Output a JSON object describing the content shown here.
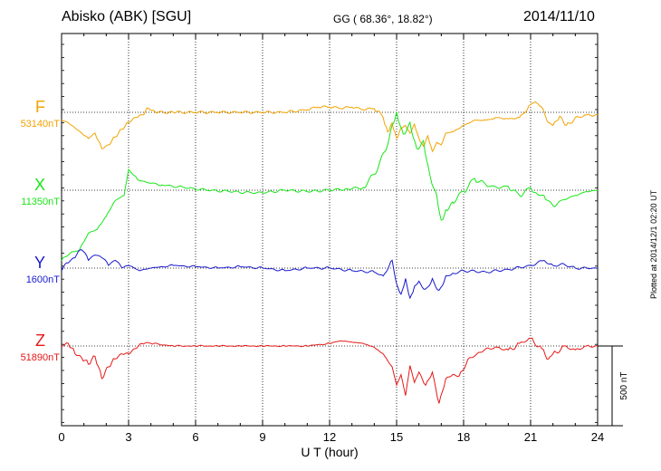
{
  "header": {
    "station": "Abisko (ABK)  [SGU]",
    "coords": "GG ( 68.36°,  18.82°)",
    "date": "2014/11/10"
  },
  "plotted_note": "Plotted at 2014/12/1 02:20 UT",
  "chart_data": {
    "type": "line",
    "xlabel": "U T (hour)",
    "xlim": [
      0,
      24
    ],
    "xticks": [
      "0",
      "3",
      "6",
      "9",
      "12",
      "15",
      "18",
      "21",
      "24"
    ],
    "grid": true,
    "scale_bar": "500 nT",
    "scale_bar_nT": 500,
    "series": [
      {
        "name": "F",
        "baseline": "53140nT",
        "color": "#f2a300",
        "x": [
          0,
          0.3,
          0.6,
          0.9,
          1.2,
          1.5,
          1.8,
          2.1,
          2.4,
          2.7,
          3.0,
          3.3,
          3.6,
          3.9,
          4.2,
          5,
          6,
          7,
          8,
          9,
          10,
          11,
          11.5,
          12,
          12.5,
          13,
          13.5,
          14,
          14.4,
          14.6,
          14.8,
          15.0,
          15.2,
          15.4,
          15.6,
          15.8,
          16.0,
          16.2,
          16.4,
          16.6,
          16.8,
          17.0,
          17.2,
          17.5,
          18,
          18.5,
          19,
          19.5,
          20,
          20.5,
          21,
          21.2,
          21.5,
          21.8,
          22,
          22.3,
          22.6,
          23,
          23.5,
          24
        ],
        "y": [
          -60,
          -80,
          -120,
          -160,
          -200,
          -160,
          -280,
          -250,
          -190,
          -130,
          -80,
          -40,
          -20,
          30,
          0,
          0,
          0,
          0,
          0,
          0,
          0,
          20,
          40,
          40,
          30,
          40,
          20,
          30,
          -40,
          -150,
          -80,
          -200,
          -120,
          -100,
          -160,
          -90,
          -200,
          -260,
          -180,
          -300,
          -230,
          -250,
          -160,
          -150,
          -100,
          -60,
          -60,
          -40,
          -50,
          -40,
          60,
          80,
          40,
          -80,
          -100,
          -30,
          -100,
          -40,
          -20,
          -20
        ]
      },
      {
        "name": "X",
        "baseline": "11350nT",
        "color": "#19e619",
        "x": [
          0,
          0.4,
          0.8,
          1.2,
          1.6,
          2.0,
          2.4,
          2.8,
          3.0,
          3.4,
          3.8,
          4.5,
          5.5,
          6.5,
          7.5,
          8.5,
          9,
          10,
          11,
          12,
          12.8,
          13.5,
          14.0,
          14.5,
          14.8,
          15.0,
          15.3,
          15.6,
          15.9,
          16.2,
          16.5,
          16.8,
          17.0,
          17.2,
          17.5,
          18.0,
          18.5,
          19.0,
          19.5,
          20,
          20.5,
          21,
          21.3,
          21.6,
          22,
          22.5,
          23,
          23.5,
          24
        ],
        "y": [
          -540,
          -480,
          -460,
          -330,
          -300,
          -200,
          -80,
          -40,
          160,
          80,
          60,
          40,
          20,
          0,
          -10,
          -20,
          -20,
          0,
          -10,
          0,
          10,
          20,
          120,
          300,
          500,
          600,
          430,
          520,
          320,
          380,
          110,
          -40,
          -230,
          -150,
          -90,
          -10,
          90,
          40,
          20,
          30,
          -40,
          20,
          -30,
          -40,
          -120,
          -70,
          -40,
          -10,
          0
        ]
      },
      {
        "name": "Y",
        "baseline": "1600nT",
        "color": "#1a1acc",
        "x": [
          0,
          0.3,
          0.6,
          0.9,
          1.2,
          1.5,
          1.8,
          2.1,
          2.4,
          2.7,
          3.0,
          3.5,
          4,
          5,
          6,
          7,
          8,
          9,
          10,
          11,
          12,
          13,
          14,
          14.4,
          14.8,
          15.0,
          15.2,
          15.4,
          15.6,
          15.8,
          16.0,
          16.3,
          16.6,
          16.9,
          17.2,
          17.5,
          18,
          19,
          20,
          21,
          21.6,
          22,
          22.5,
          23,
          24
        ],
        "y": [
          -20,
          40,
          80,
          140,
          60,
          100,
          80,
          20,
          60,
          0,
          20,
          -20,
          0,
          20,
          10,
          0,
          10,
          0,
          -20,
          0,
          0,
          -20,
          -30,
          -60,
          60,
          -120,
          -200,
          -80,
          -230,
          -140,
          -100,
          -160,
          -80,
          -170,
          -60,
          -40,
          -20,
          -30,
          -10,
          20,
          60,
          20,
          30,
          0,
          0
        ]
      },
      {
        "name": "Z",
        "baseline": "51890nT",
        "color": "#e61919",
        "x": [
          0,
          0.3,
          0.6,
          0.9,
          1.2,
          1.5,
          1.8,
          2.1,
          2.4,
          2.7,
          3.0,
          3.3,
          3.6,
          4.0,
          5,
          6,
          7,
          8,
          9,
          10,
          11,
          12,
          12.5,
          13,
          13.5,
          14,
          14.4,
          14.8,
          15.0,
          15.2,
          15.4,
          15.6,
          15.8,
          16.0,
          16.3,
          16.6,
          16.9,
          17.2,
          17.5,
          17.8,
          18.2,
          18.6,
          19,
          19.5,
          20,
          20.5,
          21,
          21.5,
          21.8,
          22,
          22.5,
          23,
          23.5,
          24
        ],
        "y": [
          0,
          20,
          -60,
          -90,
          -140,
          -80,
          -250,
          -160,
          -100,
          -60,
          -60,
          -20,
          20,
          20,
          0,
          0,
          0,
          0,
          0,
          0,
          0,
          20,
          40,
          30,
          20,
          -10,
          -60,
          -160,
          -300,
          -220,
          -380,
          -150,
          -280,
          -200,
          -300,
          -200,
          -440,
          -250,
          -220,
          -230,
          -100,
          -60,
          -20,
          -10,
          -30,
          20,
          60,
          -20,
          -100,
          -60,
          0,
          -30,
          0,
          0
        ]
      }
    ]
  }
}
